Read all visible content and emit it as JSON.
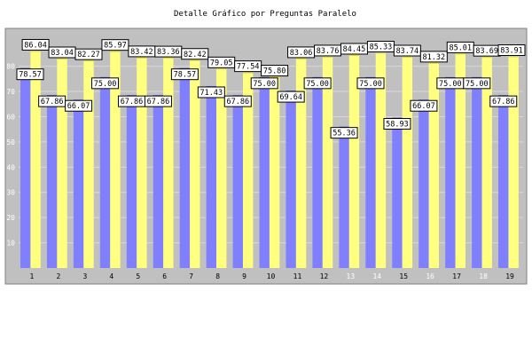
{
  "chart_data": {
    "type": "bar",
    "title": "Detalle Gráfico por Preguntas Paralelo",
    "categories": [
      "1",
      "2",
      "3",
      "4",
      "5",
      "6",
      "7",
      "8",
      "9",
      "10",
      "11",
      "12",
      "13",
      "14",
      "15",
      "16",
      "17",
      "18",
      "19"
    ],
    "y_ticks": [
      "10",
      "20",
      "30",
      "40",
      "50",
      "60",
      "70",
      "80"
    ],
    "ylim": [
      0,
      95
    ],
    "grid": true,
    "series": [
      {
        "values": [
          78.57,
          67.86,
          66.07,
          75.0,
          67.86,
          67.86,
          78.57,
          71.43,
          67.86,
          75.0,
          69.64,
          75.0,
          55.36,
          75.0,
          58.93,
          66.07,
          75.0,
          75.0,
          67.86
        ],
        "labels": [
          "78.57",
          "67.86",
          "66.07",
          "75.00",
          "67.86",
          "67.86",
          "78.57",
          "71.43",
          "67.86",
          "75.00",
          "69.64",
          "75.00",
          "55.36",
          "75.00",
          "58.93",
          "66.07",
          "75.00",
          "75.00",
          "67.86"
        ]
      },
      {
        "values": [
          86.04,
          83.04,
          82.27,
          85.97,
          83.42,
          83.36,
          82.42,
          79.05,
          77.54,
          75.8,
          83.06,
          83.76,
          84.45,
          85.33,
          83.74,
          81.32,
          85.01,
          83.69,
          83.91
        ],
        "labels": [
          "86.04",
          "83.04",
          "82.27",
          "85.97",
          "83.42",
          "83.36",
          "82.42",
          "79.05",
          "77.54",
          "75.80",
          "83.06",
          "83.76",
          "84.45",
          "85.33",
          "83.74",
          "81.32",
          "85.01",
          "83.69",
          "83.91"
        ]
      }
    ],
    "colors": {
      "series1_fill": "#8080ff",
      "series1_top": "#5f5fd8",
      "series2_fill": "#ffff80",
      "series2_top": "#d8d85a",
      "plot_bg": "#c0c0c0",
      "grid": "#d8d8d8",
      "tick_normal": "#000000",
      "tick_faded": "#ffffff"
    },
    "faded_ticks": [
      "13",
      "14",
      "16",
      "18"
    ]
  }
}
